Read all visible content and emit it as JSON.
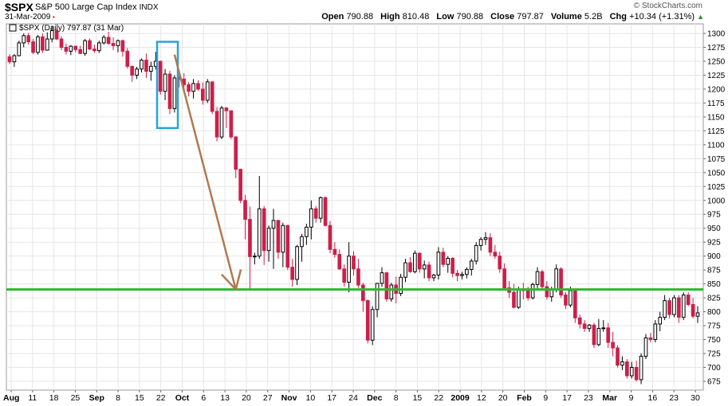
{
  "header": {
    "symbol": "$SPX",
    "name": "S&P 500 Large Cap Index",
    "exchange": "INDX",
    "date": "31-Mar-2009",
    "date_marker": "•",
    "brand": "© StockCharts.com",
    "open_label": "Open",
    "open": "790.88",
    "high_label": "High",
    "high": "810.48",
    "low_label": "Low",
    "low": "790.88",
    "close_label": "Close",
    "close": "797.87",
    "volume_label": "Volume",
    "volume": "5.2B",
    "chg_label": "Chg",
    "chg": "+10.34 (+1.31%)",
    "chg_arrow": "▲"
  },
  "legend": {
    "text": "$SPX (Daily) 797.87 (31 Mar)"
  },
  "colors": {
    "down": "#cc1f4a",
    "up": "#000000",
    "support": "#2eb82e",
    "box": "#29a3d6",
    "arrow": "#b07a52",
    "grid": "#e6e6e6"
  },
  "chart_data": {
    "type": "candlestick",
    "ylim": [
      675,
      1300
    ],
    "y_ticks": [
      675,
      700,
      725,
      750,
      775,
      800,
      825,
      850,
      875,
      900,
      925,
      950,
      975,
      1000,
      1025,
      1050,
      1075,
      1100,
      1125,
      1150,
      1175,
      1200,
      1225,
      1250,
      1275,
      1300
    ],
    "x_labels": [
      "Aug",
      "11",
      "18",
      "25",
      "Sep",
      "8",
      "15",
      "22",
      "Oct",
      "6",
      "13",
      "20",
      "27",
      "Nov",
      "10",
      "17",
      "24",
      "Dec",
      "8",
      "15",
      "22",
      "2009",
      "12",
      "20",
      "Feb",
      "9",
      "17",
      "23",
      "Mar",
      "9",
      "16",
      "23",
      "30"
    ],
    "x_label_bold": [
      "Aug",
      "Sep",
      "Oct",
      "Nov",
      "Dec",
      "2009",
      "Feb",
      "Mar"
    ],
    "support_level": 840,
    "annotations": [
      {
        "type": "box",
        "from_index": 32,
        "to_index": 35,
        "y_low": 1130,
        "y_high": 1285
      },
      {
        "type": "arrow",
        "from_index": 35,
        "from_y": 1262,
        "to_index": 48,
        "to_y": 840
      }
    ],
    "candles": [
      [
        1258,
        1263,
        1245,
        1249
      ],
      [
        1249,
        1263,
        1240,
        1260
      ],
      [
        1260,
        1287,
        1259,
        1283
      ],
      [
        1283,
        1300,
        1275,
        1296
      ],
      [
        1296,
        1301,
        1280,
        1285
      ],
      [
        1285,
        1290,
        1263,
        1266
      ],
      [
        1266,
        1297,
        1262,
        1294
      ],
      [
        1294,
        1300,
        1265,
        1270
      ],
      [
        1270,
        1302,
        1269,
        1290
      ],
      [
        1290,
        1313,
        1284,
        1305
      ],
      [
        1305,
        1308,
        1288,
        1290
      ],
      [
        1290,
        1295,
        1270,
        1275
      ],
      [
        1275,
        1282,
        1262,
        1268
      ],
      [
        1268,
        1279,
        1261,
        1277
      ],
      [
        1277,
        1278,
        1266,
        1271
      ],
      [
        1271,
        1278,
        1263,
        1264
      ],
      [
        1264,
        1290,
        1260,
        1287
      ],
      [
        1287,
        1291,
        1270,
        1272
      ],
      [
        1272,
        1280,
        1265,
        1269
      ],
      [
        1269,
        1287,
        1265,
        1283
      ],
      [
        1283,
        1297,
        1280,
        1293
      ],
      [
        1293,
        1303,
        1280,
        1282
      ],
      [
        1282,
        1293,
        1270,
        1278
      ],
      [
        1278,
        1289,
        1266,
        1287
      ],
      [
        1287,
        1289,
        1258,
        1268
      ],
      [
        1268,
        1274,
        1237,
        1241
      ],
      [
        1241,
        1242,
        1213,
        1225
      ],
      [
        1225,
        1240,
        1218,
        1236
      ],
      [
        1236,
        1255,
        1230,
        1252
      ],
      [
        1252,
        1264,
        1220,
        1232
      ],
      [
        1232,
        1249,
        1215,
        1241
      ],
      [
        1241,
        1267,
        1235,
        1250
      ],
      [
        1250,
        1251,
        1190,
        1196
      ],
      [
        1196,
        1236,
        1180,
        1227
      ],
      [
        1227,
        1233,
        1155,
        1165
      ],
      [
        1165,
        1225,
        1158,
        1220
      ],
      [
        1220,
        1233,
        1203,
        1218
      ],
      [
        1218,
        1229,
        1192,
        1208
      ],
      [
        1208,
        1213,
        1187,
        1196
      ],
      [
        1196,
        1218,
        1183,
        1210
      ],
      [
        1210,
        1216,
        1197,
        1200
      ],
      [
        1200,
        1212,
        1172,
        1180
      ],
      [
        1180,
        1218,
        1175,
        1213
      ],
      [
        1213,
        1213,
        1155,
        1160
      ],
      [
        1160,
        1168,
        1106,
        1114
      ],
      [
        1114,
        1170,
        1110,
        1166
      ],
      [
        1166,
        1168,
        1130,
        1161
      ],
      [
        1161,
        1162,
        1110,
        1114
      ],
      [
        1114,
        1116,
        1040,
        1056
      ],
      [
        1056,
        1057,
        995,
        1000
      ],
      [
        1000,
        1010,
        930,
        966
      ],
      [
        966,
        989,
        840,
        899
      ],
      [
        899,
        906,
        885,
        900
      ],
      [
        900,
        1044,
        895,
        985
      ],
      [
        985,
        990,
        884,
        910
      ],
      [
        910,
        955,
        890,
        950
      ],
      [
        950,
        985,
        877,
        964
      ],
      [
        964,
        965,
        895,
        907
      ],
      [
        907,
        960,
        880,
        955
      ],
      [
        955,
        956,
        875,
        880
      ],
      [
        880,
        895,
        845,
        858
      ],
      [
        858,
        920,
        848,
        917
      ],
      [
        917,
        940,
        890,
        935
      ],
      [
        935,
        958,
        920,
        952
      ],
      [
        952,
        1000,
        930,
        985
      ],
      [
        985,
        990,
        960,
        968
      ],
      [
        968,
        1007,
        960,
        1005
      ],
      [
        1005,
        1007,
        953,
        955
      ],
      [
        955,
        963,
        905,
        912
      ],
      [
        912,
        925,
        897,
        903
      ],
      [
        903,
        912,
        875,
        877
      ],
      [
        877,
        885,
        845,
        853
      ],
      [
        853,
        925,
        835,
        900
      ],
      [
        900,
        909,
        865,
        877
      ],
      [
        877,
        895,
        843,
        848
      ],
      [
        848,
        852,
        800,
        820
      ],
      [
        820,
        822,
        743,
        749
      ],
      [
        749,
        810,
        740,
        804
      ],
      [
        804,
        852,
        790,
        851
      ],
      [
        851,
        880,
        845,
        870
      ],
      [
        870,
        872,
        818,
        823
      ],
      [
        823,
        852,
        818,
        848
      ],
      [
        848,
        863,
        815,
        833
      ],
      [
        833,
        868,
        828,
        862
      ],
      [
        862,
        895,
        853,
        888
      ],
      [
        888,
        898,
        870,
        872
      ],
      [
        872,
        910,
        869,
        905
      ],
      [
        905,
        907,
        870,
        877
      ],
      [
        877,
        892,
        860,
        884
      ],
      [
        884,
        890,
        855,
        861
      ],
      [
        861,
        868,
        855,
        866
      ],
      [
        866,
        916,
        858,
        907
      ],
      [
        907,
        915,
        880,
        885
      ],
      [
        885,
        900,
        870,
        896
      ],
      [
        896,
        898,
        862,
        869
      ],
      [
        869,
        875,
        855,
        865
      ],
      [
        865,
        872,
        858,
        867
      ],
      [
        867,
        880,
        860,
        876
      ],
      [
        876,
        895,
        865,
        891
      ],
      [
        891,
        925,
        885,
        919
      ],
      [
        919,
        934,
        910,
        930
      ],
      [
        930,
        943,
        920,
        933
      ],
      [
        933,
        941,
        900,
        907
      ],
      [
        907,
        920,
        895,
        900
      ],
      [
        900,
        908,
        870,
        877
      ],
      [
        877,
        887,
        840,
        843
      ],
      [
        843,
        855,
        825,
        835
      ],
      [
        835,
        850,
        806,
        808
      ],
      [
        808,
        845,
        805,
        841
      ],
      [
        841,
        852,
        822,
        838
      ],
      [
        838,
        845,
        820,
        825
      ],
      [
        825,
        852,
        822,
        849
      ],
      [
        849,
        880,
        840,
        872
      ],
      [
        872,
        875,
        838,
        845
      ],
      [
        845,
        855,
        822,
        827
      ],
      [
        827,
        845,
        818,
        839
      ],
      [
        839,
        885,
        835,
        877
      ],
      [
        877,
        880,
        825,
        830
      ],
      [
        830,
        835,
        805,
        812
      ],
      [
        812,
        845,
        808,
        838
      ],
      [
        838,
        840,
        780,
        789
      ],
      [
        789,
        795,
        770,
        778
      ],
      [
        778,
        785,
        764,
        770
      ],
      [
        770,
        778,
        764,
        776
      ],
      [
        776,
        780,
        735,
        741
      ],
      [
        741,
        787,
        738,
        770
      ],
      [
        770,
        785,
        764,
        771
      ],
      [
        771,
        780,
        735,
        745
      ],
      [
        745,
        764,
        720,
        735
      ],
      [
        735,
        740,
        700,
        704
      ],
      [
        704,
        720,
        695,
        710
      ],
      [
        710,
        715,
        680,
        685
      ],
      [
        685,
        710,
        680,
        700
      ],
      [
        700,
        712,
        675,
        678
      ],
      [
        678,
        725,
        670,
        720
      ],
      [
        720,
        760,
        715,
        753
      ],
      [
        753,
        762,
        745,
        750
      ],
      [
        750,
        785,
        745,
        778
      ],
      [
        778,
        800,
        765,
        790
      ],
      [
        790,
        830,
        785,
        820
      ],
      [
        820,
        825,
        788,
        795
      ],
      [
        795,
        830,
        790,
        825
      ],
      [
        825,
        830,
        780,
        790
      ],
      [
        790,
        835,
        785,
        830
      ],
      [
        830,
        835,
        810,
        813
      ],
      [
        813,
        825,
        788,
        792
      ],
      [
        792,
        810,
        780,
        798
      ]
    ]
  }
}
